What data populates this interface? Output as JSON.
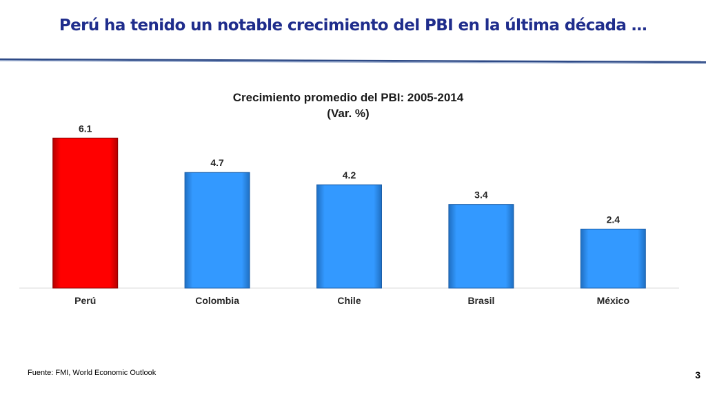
{
  "slide": {
    "title": "Perú ha tenido un notable crecimiento del PBI en la última década …",
    "source": "Fuente: FMI, World Economic Outlook",
    "page_number": "3"
  },
  "colors": {
    "title": "#1f2d8c",
    "rule": "#2e4a86",
    "highlight_bar": "#ff0000",
    "default_bar": "#3399ff"
  },
  "chart_data": {
    "type": "bar",
    "title": "Crecimiento promedio del PBI: 2005-2014",
    "subtitle": "(Var. %)",
    "categories": [
      "Perú",
      "Colombia",
      "Chile",
      "Brasil",
      "México"
    ],
    "values": [
      6.1,
      4.7,
      4.2,
      3.4,
      2.4
    ],
    "data_labels": [
      "6.1",
      "4.7",
      "4.2",
      "3.4",
      "2.4"
    ],
    "highlight_index": 0,
    "ylim": [
      0,
      6.5
    ],
    "grid": false,
    "legend": "none",
    "xlabel": "",
    "ylabel": ""
  }
}
